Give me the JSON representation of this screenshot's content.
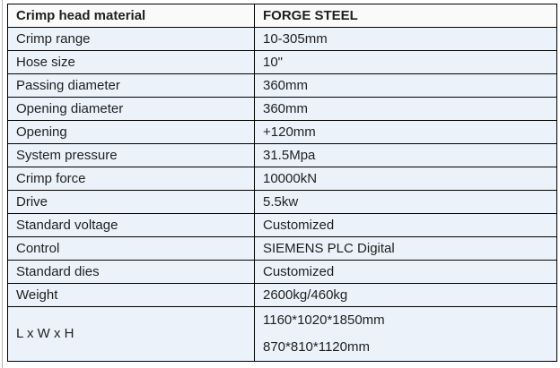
{
  "colors": {
    "page_bg": "#ffffff",
    "row_bg": "#ebf2fa",
    "header_bg": "#fafafa",
    "border": "#000000",
    "text": "#1f1f1f",
    "left_rule": "#b5b5b5"
  },
  "table": {
    "rows": [
      {
        "label": "Crimp head material",
        "value": "FORGE STEEL"
      },
      {
        "label": "Crimp range",
        "value": "10-305mm"
      },
      {
        "label": "Hose size",
        "value": "10\""
      },
      {
        "label": "Passing diameter",
        "value": "360mm"
      },
      {
        "label": "Opening diameter",
        "value": "360mm"
      },
      {
        "label": "Opening",
        "value": "+120mm"
      },
      {
        "label": "System pressure",
        "value": "31.5Mpa"
      },
      {
        "label": "Crimp force",
        "value": "10000kN"
      },
      {
        "label": "Drive",
        "value": "5.5kw"
      },
      {
        "label": "Standard voltage",
        "value": "Customized"
      },
      {
        "label": "Control",
        "value": "SIEMENS PLC Digital"
      },
      {
        "label": "Standard dies",
        "value": "Customized"
      },
      {
        "label": "Weight",
        "value": "2600kg/460kg"
      },
      {
        "label": "L x W x H",
        "value": "1160*1020*1850mm\n870*810*1120mm"
      }
    ]
  }
}
